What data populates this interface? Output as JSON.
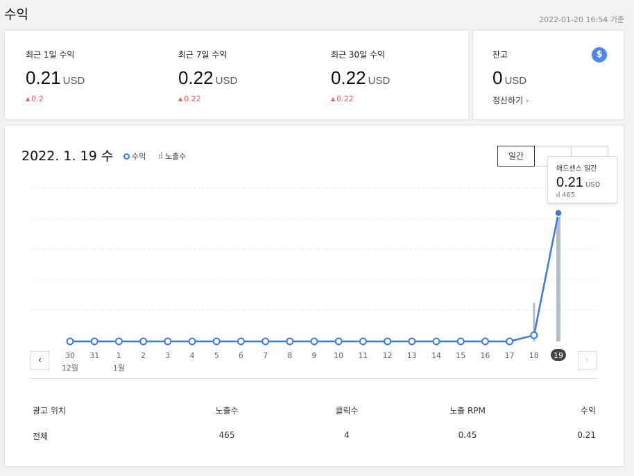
{
  "page": {
    "title": "수익",
    "updated": "2022-01-20 16:54 기준"
  },
  "stats": [
    {
      "label": "최근 1일 수익",
      "value": "0.21",
      "unit": "USD",
      "delta": "0.2"
    },
    {
      "label": "최근 7일 수익",
      "value": "0.22",
      "unit": "USD",
      "delta": "0.22"
    },
    {
      "label": "최근 30일 수익",
      "value": "0.22",
      "unit": "USD",
      "delta": "0.22"
    }
  ],
  "balance": {
    "label": "잔고",
    "value": "0",
    "unit": "USD",
    "settle": "정산하기",
    "icon": "dollar-icon"
  },
  "chart_header": {
    "date": "2022. 1. 19 수",
    "legend_revenue": "수익",
    "legend_impressions": "노출수",
    "period_daily": "일간"
  },
  "tooltip": {
    "title": "애드센스 일간",
    "value": "0.21",
    "unit": "USD",
    "impressions": "465"
  },
  "chart_data": {
    "type": "line",
    "x": [
      "30",
      "31",
      "1",
      "2",
      "3",
      "4",
      "5",
      "6",
      "7",
      "8",
      "9",
      "10",
      "11",
      "12",
      "13",
      "14",
      "15",
      "16",
      "17",
      "18",
      "19"
    ],
    "month_labels": [
      {
        "index": 0,
        "label": "12월"
      },
      {
        "index": 2,
        "label": "1월"
      }
    ],
    "selected_index": 20,
    "series": [
      {
        "name": "수익",
        "kind": "line",
        "color": "#3b78e7",
        "unit": "USD",
        "values": [
          0,
          0,
          0,
          0,
          0,
          0,
          0,
          0,
          0,
          0,
          0,
          0,
          0,
          0,
          0,
          0,
          0,
          0,
          0,
          0.01,
          0.21
        ]
      },
      {
        "name": "노출수",
        "kind": "bar",
        "color": "#b7bdc6",
        "values": [
          0,
          0,
          0,
          0,
          0,
          0,
          0,
          0,
          0,
          0,
          0,
          0,
          0,
          0,
          0,
          0,
          0,
          0,
          0,
          140,
          465
        ]
      }
    ],
    "grid": true
  },
  "table": {
    "headers": [
      "광고 위치",
      "노출수",
      "클릭수",
      "노출 RPM",
      "수익"
    ],
    "rows": [
      [
        "전체",
        "465",
        "4",
        "0.45",
        "0.21"
      ]
    ]
  }
}
